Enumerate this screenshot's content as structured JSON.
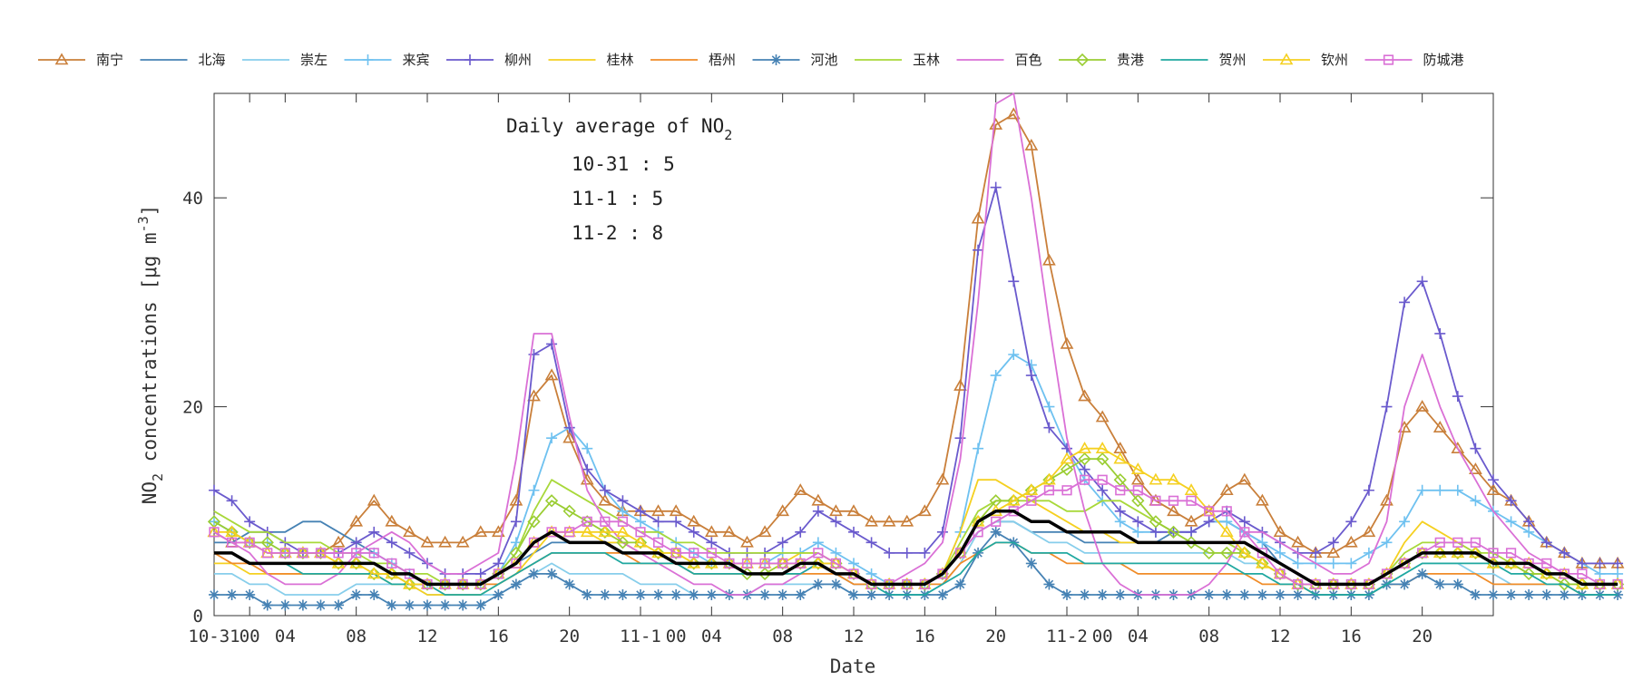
{
  "chart_data": {
    "type": "line",
    "title": "Daily average of NO2",
    "xlabel": "Date",
    "ylabel": "NO2 concentrations [μg m-3]",
    "ylim": [
      0,
      50
    ],
    "xlim": [
      0,
      72
    ],
    "yticks": [
      0,
      20,
      40
    ],
    "x_tick_labels": [
      {
        "x": 0,
        "label": "10-31"
      },
      {
        "x": 2,
        "label": "00"
      },
      {
        "x": 4,
        "label": "04"
      },
      {
        "x": 8,
        "label": "08"
      },
      {
        "x": 12,
        "label": "12"
      },
      {
        "x": 16,
        "label": "16"
      },
      {
        "x": 20,
        "label": "20"
      },
      {
        "x": 24,
        "label": "11-1"
      },
      {
        "x": 26,
        "label": "00"
      },
      {
        "x": 28,
        "label": "04"
      },
      {
        "x": 32,
        "label": "08"
      },
      {
        "x": 36,
        "label": "12"
      },
      {
        "x": 40,
        "label": "16"
      },
      {
        "x": 44,
        "label": "20"
      },
      {
        "x": 48,
        "label": "11-2"
      },
      {
        "x": 50,
        "label": "00"
      },
      {
        "x": 52,
        "label": "04"
      },
      {
        "x": 56,
        "label": "08"
      },
      {
        "x": 60,
        "label": "12"
      },
      {
        "x": 64,
        "label": "16"
      },
      {
        "x": 68,
        "label": "20"
      }
    ],
    "x_minor_ticks": [
      2,
      4,
      8,
      12,
      16,
      20,
      24,
      28,
      32,
      36,
      40,
      44,
      48,
      52,
      56,
      60,
      64,
      68
    ],
    "annotation": {
      "title": "Daily average of NO",
      "subscript": "2",
      "lines": [
        "10-31 : 5",
        "11-1 : 5",
        "11-2 : 8"
      ]
    },
    "legend_position": "top",
    "series": [
      {
        "name": "南宁",
        "color": "#c97f3a",
        "marker": "triangle",
        "values": [
          8,
          7,
          7,
          6,
          6,
          6,
          6,
          7,
          9,
          11,
          9,
          8,
          7,
          7,
          7,
          8,
          8,
          11,
          21,
          23,
          17,
          13,
          11,
          10,
          10,
          10,
          10,
          9,
          8,
          8,
          7,
          8,
          10,
          12,
          11,
          10,
          10,
          9,
          9,
          9,
          10,
          13,
          22,
          38,
          47,
          48,
          45,
          34,
          26,
          21,
          19,
          16,
          13,
          11,
          10,
          9,
          10,
          12,
          13,
          11,
          8,
          7,
          6,
          6,
          7,
          8,
          11,
          18,
          20,
          18,
          16,
          14,
          12,
          11,
          9,
          7,
          6,
          5,
          5,
          5
        ]
      },
      {
        "name": "北海",
        "color": "#4682b4",
        "marker": "none",
        "values": [
          7,
          7,
          8,
          8,
          8,
          9,
          9,
          8,
          7,
          6,
          5,
          4,
          3,
          3,
          3,
          3,
          4,
          5,
          6,
          7,
          7,
          7,
          7,
          7,
          6,
          6,
          5,
          5,
          5,
          5,
          5,
          5,
          5,
          5,
          5,
          4,
          3,
          3,
          3,
          3,
          3,
          4,
          6,
          8,
          9,
          9,
          8,
          8,
          8,
          7,
          7,
          7,
          7,
          7,
          8,
          8,
          9,
          9,
          8,
          7,
          5,
          4,
          3,
          3,
          3,
          3,
          4,
          5,
          6,
          6,
          6,
          6,
          5,
          5,
          4,
          4,
          4,
          3,
          3,
          3
        ]
      },
      {
        "name": "崇左",
        "color": "#87ceeb",
        "marker": "none",
        "values": [
          4,
          4,
          3,
          3,
          2,
          2,
          2,
          2,
          3,
          3,
          3,
          3,
          2,
          2,
          2,
          2,
          2,
          3,
          4,
          5,
          4,
          4,
          4,
          4,
          3,
          3,
          3,
          2,
          2,
          2,
          2,
          3,
          3,
          3,
          3,
          3,
          2,
          2,
          2,
          2,
          2,
          3,
          5,
          8,
          9,
          9,
          8,
          7,
          7,
          6,
          6,
          6,
          6,
          6,
          6,
          6,
          6,
          6,
          5,
          5,
          4,
          3,
          2,
          2,
          2,
          2,
          3,
          4,
          5,
          5,
          5,
          4,
          4,
          3,
          3,
          3,
          3,
          2,
          2,
          2
        ]
      },
      {
        "name": "来宾",
        "color": "#6ec1f0",
        "marker": "plus",
        "values": [
          9,
          8,
          7,
          7,
          6,
          6,
          6,
          6,
          6,
          6,
          5,
          4,
          3,
          3,
          3,
          3,
          4,
          7,
          12,
          17,
          18,
          16,
          12,
          10,
          9,
          8,
          7,
          6,
          5,
          5,
          5,
          5,
          6,
          6,
          7,
          6,
          5,
          4,
          3,
          3,
          3,
          4,
          8,
          16,
          23,
          25,
          24,
          20,
          16,
          13,
          11,
          9,
          8,
          8,
          8,
          8,
          9,
          9,
          8,
          7,
          6,
          5,
          5,
          5,
          5,
          6,
          7,
          9,
          12,
          12,
          12,
          11,
          10,
          9,
          8,
          7,
          6,
          5,
          4,
          4
        ]
      },
      {
        "name": "柳州",
        "color": "#6a5acd",
        "marker": "plus",
        "values": [
          12,
          11,
          9,
          8,
          7,
          6,
          6,
          6,
          7,
          8,
          7,
          6,
          5,
          4,
          4,
          4,
          5,
          9,
          25,
          26,
          18,
          14,
          12,
          11,
          10,
          9,
          9,
          8,
          7,
          6,
          6,
          6,
          7,
          8,
          10,
          9,
          8,
          7,
          6,
          6,
          6,
          8,
          17,
          35,
          41,
          32,
          23,
          18,
          16,
          14,
          12,
          10,
          9,
          8,
          8,
          8,
          9,
          10,
          9,
          8,
          7,
          6,
          6,
          7,
          9,
          12,
          20,
          30,
          32,
          27,
          21,
          16,
          13,
          11,
          9,
          7,
          6,
          5,
          5,
          5
        ]
      },
      {
        "name": "桂林",
        "color": "#f5d020",
        "marker": "none",
        "values": [
          5,
          5,
          4,
          4,
          4,
          4,
          4,
          4,
          4,
          4,
          3,
          3,
          2,
          2,
          2,
          2,
          3,
          4,
          6,
          8,
          8,
          8,
          7,
          7,
          6,
          6,
          5,
          5,
          5,
          5,
          5,
          5,
          5,
          6,
          6,
          5,
          4,
          3,
          3,
          3,
          3,
          4,
          8,
          13,
          13,
          12,
          11,
          10,
          9,
          8,
          8,
          7,
          7,
          7,
          7,
          7,
          7,
          7,
          6,
          5,
          4,
          3,
          3,
          3,
          3,
          3,
          4,
          7,
          9,
          8,
          7,
          6,
          5,
          5,
          4,
          4,
          3,
          3,
          3,
          3
        ]
      },
      {
        "name": "梧州",
        "color": "#f08c28",
        "marker": "none",
        "values": [
          6,
          5,
          5,
          4,
          4,
          4,
          4,
          4,
          4,
          4,
          4,
          3,
          3,
          3,
          3,
          3,
          3,
          4,
          5,
          6,
          6,
          6,
          6,
          6,
          5,
          5,
          5,
          4,
          4,
          4,
          4,
          4,
          4,
          4,
          4,
          4,
          3,
          3,
          3,
          3,
          3,
          3,
          5,
          6,
          7,
          7,
          6,
          6,
          5,
          5,
          5,
          5,
          4,
          4,
          4,
          4,
          4,
          4,
          4,
          3,
          3,
          3,
          2,
          2,
          2,
          2,
          3,
          3,
          4,
          4,
          4,
          4,
          3,
          3,
          3,
          3,
          3,
          2,
          2,
          2
        ]
      },
      {
        "name": "河池",
        "color": "#4682b4",
        "marker": "asterisk",
        "values": [
          2,
          2,
          2,
          1,
          1,
          1,
          1,
          1,
          2,
          2,
          1,
          1,
          1,
          1,
          1,
          1,
          2,
          3,
          4,
          4,
          3,
          2,
          2,
          2,
          2,
          2,
          2,
          2,
          2,
          2,
          2,
          2,
          2,
          2,
          3,
          3,
          2,
          2,
          2,
          2,
          2,
          2,
          3,
          6,
          8,
          7,
          5,
          3,
          2,
          2,
          2,
          2,
          2,
          2,
          2,
          2,
          2,
          2,
          2,
          2,
          2,
          2,
          2,
          2,
          2,
          2,
          3,
          3,
          4,
          3,
          3,
          2,
          2,
          2,
          2,
          2,
          2,
          2,
          2,
          2
        ]
      },
      {
        "name": "玉林",
        "color": "#a8d83a",
        "marker": "none",
        "values": [
          10,
          9,
          8,
          8,
          7,
          7,
          7,
          6,
          6,
          5,
          5,
          4,
          4,
          3,
          3,
          3,
          4,
          6,
          10,
          13,
          12,
          11,
          10,
          9,
          8,
          8,
          7,
          7,
          6,
          6,
          6,
          6,
          6,
          6,
          6,
          5,
          4,
          3,
          3,
          3,
          3,
          4,
          7,
          10,
          11,
          11,
          11,
          11,
          10,
          10,
          11,
          11,
          10,
          9,
          8,
          7,
          7,
          7,
          6,
          5,
          4,
          3,
          3,
          3,
          3,
          3,
          4,
          6,
          7,
          7,
          7,
          6,
          6,
          5,
          5,
          4,
          4,
          3,
          3,
          3
        ]
      },
      {
        "name": "百色",
        "color": "#da70d6",
        "marker": "none",
        "values": [
          8,
          7,
          6,
          4,
          3,
          3,
          3,
          4,
          6,
          7,
          8,
          7,
          5,
          4,
          4,
          5,
          6,
          15,
          27,
          27,
          19,
          12,
          9,
          7,
          6,
          5,
          4,
          3,
          3,
          2,
          2,
          3,
          3,
          4,
          5,
          5,
          4,
          3,
          3,
          4,
          5,
          7,
          15,
          30,
          49,
          50,
          40,
          28,
          17,
          10,
          5,
          3,
          2,
          2,
          2,
          2,
          3,
          5,
          8,
          8,
          7,
          6,
          5,
          4,
          4,
          5,
          9,
          20,
          25,
          20,
          16,
          13,
          10,
          8,
          6,
          5,
          4,
          3,
          3,
          3
        ]
      },
      {
        "name": "贵港",
        "color": "#9acd32",
        "marker": "diamond",
        "values": [
          9,
          8,
          7,
          7,
          6,
          6,
          6,
          5,
          5,
          4,
          4,
          3,
          3,
          3,
          3,
          3,
          4,
          6,
          9,
          11,
          10,
          9,
          8,
          7,
          7,
          6,
          6,
          5,
          5,
          5,
          4,
          4,
          5,
          5,
          5,
          5,
          4,
          3,
          3,
          3,
          3,
          4,
          6,
          9,
          11,
          11,
          12,
          13,
          14,
          15,
          15,
          13,
          11,
          9,
          8,
          7,
          6,
          6,
          6,
          5,
          4,
          3,
          3,
          3,
          3,
          3,
          4,
          5,
          6,
          6,
          6,
          6,
          5,
          5,
          4,
          4,
          3,
          3,
          3,
          3
        ]
      },
      {
        "name": "贺州",
        "color": "#20a8a0",
        "marker": "none",
        "values": [
          6,
          6,
          5,
          5,
          5,
          4,
          4,
          4,
          4,
          4,
          3,
          3,
          3,
          2,
          2,
          2,
          3,
          4,
          5,
          6,
          6,
          6,
          6,
          5,
          5,
          5,
          5,
          4,
          4,
          4,
          4,
          4,
          4,
          4,
          5,
          4,
          4,
          3,
          2,
          2,
          2,
          3,
          4,
          6,
          7,
          7,
          6,
          6,
          6,
          5,
          5,
          5,
          5,
          5,
          5,
          5,
          5,
          5,
          4,
          4,
          3,
          3,
          2,
          2,
          2,
          2,
          3,
          4,
          5,
          5,
          5,
          5,
          5,
          4,
          4,
          3,
          3,
          2,
          2,
          2
        ]
      },
      {
        "name": "钦州",
        "color": "#f5d020",
        "marker": "triangle",
        "values": [
          8,
          8,
          7,
          6,
          6,
          6,
          6,
          5,
          5,
          4,
          4,
          3,
          3,
          3,
          3,
          3,
          4,
          5,
          7,
          8,
          8,
          8,
          8,
          8,
          7,
          6,
          6,
          5,
          5,
          5,
          5,
          5,
          5,
          5,
          5,
          5,
          4,
          3,
          3,
          3,
          3,
          4,
          6,
          9,
          10,
          11,
          12,
          13,
          15,
          16,
          16,
          15,
          14,
          13,
          13,
          12,
          10,
          8,
          6,
          5,
          4,
          3,
          3,
          3,
          3,
          3,
          4,
          5,
          6,
          6,
          6,
          6,
          5,
          5,
          5,
          4,
          4,
          3,
          3,
          3
        ]
      },
      {
        "name": "防城港",
        "color": "#da70d6",
        "marker": "square",
        "values": [
          8,
          7,
          7,
          6,
          6,
          6,
          6,
          6,
          6,
          6,
          5,
          4,
          3,
          3,
          3,
          3,
          4,
          5,
          7,
          8,
          8,
          9,
          9,
          9,
          8,
          7,
          6,
          6,
          6,
          5,
          5,
          5,
          5,
          5,
          6,
          5,
          4,
          3,
          3,
          3,
          3,
          4,
          6,
          8,
          9,
          10,
          11,
          12,
          12,
          13,
          13,
          12,
          12,
          11,
          11,
          11,
          10,
          10,
          8,
          6,
          4,
          3,
          3,
          3,
          3,
          3,
          4,
          5,
          6,
          7,
          7,
          7,
          6,
          6,
          5,
          5,
          4,
          4,
          3,
          3
        ]
      },
      {
        "name": "average",
        "color": "#000000",
        "marker": "none",
        "legend": false,
        "values": [
          6,
          6,
          5,
          5,
          5,
          5,
          5,
          5,
          5,
          5,
          4,
          4,
          3,
          3,
          3,
          3,
          4,
          5,
          7,
          8,
          7,
          7,
          7,
          6,
          6,
          6,
          5,
          5,
          5,
          5,
          4,
          4,
          4,
          5,
          5,
          4,
          4,
          3,
          3,
          3,
          3,
          4,
          6,
          9,
          10,
          10,
          9,
          9,
          8,
          8,
          8,
          8,
          7,
          7,
          7,
          7,
          7,
          7,
          7,
          6,
          5,
          4,
          3,
          3,
          3,
          3,
          4,
          5,
          6,
          6,
          6,
          6,
          5,
          5,
          5,
          4,
          4,
          3,
          3,
          3
        ]
      }
    ]
  }
}
